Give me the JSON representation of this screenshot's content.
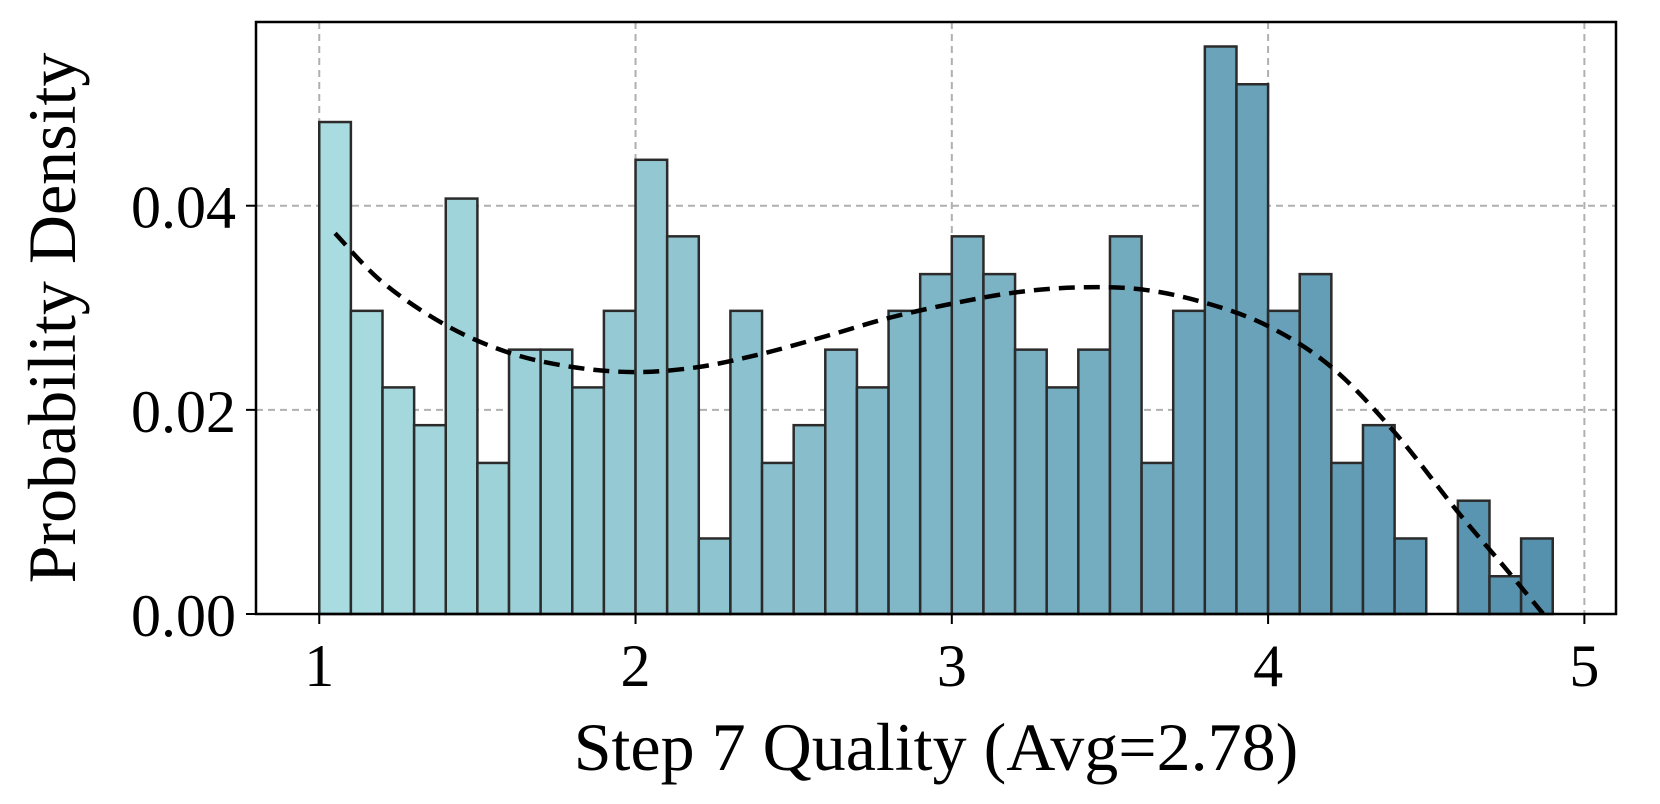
{
  "chart_data": {
    "type": "bar",
    "title": "",
    "xlabel": "Step 7 Quality (Avg=2.78)",
    "ylabel": "Probability Density",
    "xlim": [
      0.8,
      5.1
    ],
    "ylim": [
      0,
      0.058
    ],
    "x_ticks": [
      "1",
      "2",
      "3",
      "4",
      "5"
    ],
    "x_tick_values": [
      1,
      2,
      3,
      4,
      5
    ],
    "y_ticks": [
      "0.00",
      "0.02",
      "0.04"
    ],
    "y_tick_values": [
      0,
      0.02,
      0.04
    ],
    "grid": true,
    "bin_width": 0.1,
    "bin_starts": [
      1.0,
      1.1,
      1.2,
      1.3,
      1.4,
      1.5,
      1.6,
      1.7,
      1.8,
      1.9,
      2.0,
      2.1,
      2.2,
      2.3,
      2.4,
      2.5,
      2.6,
      2.7,
      2.8,
      2.9,
      3.0,
      3.1,
      3.2,
      3.3,
      3.4,
      3.5,
      3.6,
      3.7,
      3.8,
      3.9,
      4.0,
      4.1,
      4.2,
      4.3,
      4.4,
      4.5,
      4.6,
      4.7,
      4.8
    ],
    "values": [
      0.0482,
      0.0297,
      0.0222,
      0.0185,
      0.0407,
      0.0148,
      0.0259,
      0.0259,
      0.0222,
      0.0297,
      0.0445,
      0.037,
      0.0074,
      0.0297,
      0.0148,
      0.0185,
      0.0259,
      0.0222,
      0.0297,
      0.0333,
      0.037,
      0.0333,
      0.0259,
      0.0222,
      0.0259,
      0.037,
      0.0148,
      0.0297,
      0.0556,
      0.0519,
      0.0297,
      0.0333,
      0.0148,
      0.0185,
      0.0074,
      0.0,
      0.0111,
      0.0037,
      0.0074
    ],
    "bar_color_start": "#a9dce0",
    "bar_color_end": "#5590ad",
    "bar_edge_color": "#2b2b2b",
    "kde": {
      "name": "",
      "style": "dashed",
      "color": "#000000",
      "x": [
        1.05,
        1.2,
        1.4,
        1.6,
        1.8,
        2.0,
        2.2,
        2.4,
        2.6,
        2.8,
        3.0,
        3.2,
        3.4,
        3.6,
        3.8,
        4.0,
        4.2,
        4.4,
        4.6,
        4.75,
        4.87
      ],
      "y": [
        0.0373,
        0.0325,
        0.0283,
        0.0256,
        0.0242,
        0.0237,
        0.0242,
        0.0255,
        0.0272,
        0.029,
        0.0304,
        0.0315,
        0.032,
        0.0318,
        0.0305,
        0.0282,
        0.0242,
        0.0178,
        0.01,
        0.0045,
        0.0
      ]
    }
  }
}
